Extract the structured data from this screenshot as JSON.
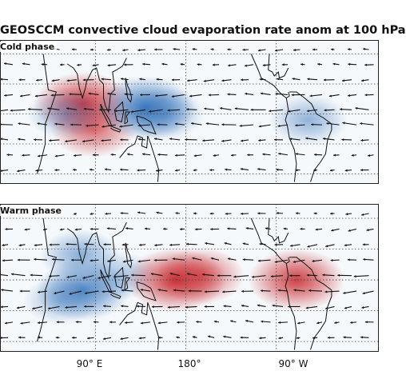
{
  "title": "GEOSCCM convective cloud evaporation rate anom at 100 hPa",
  "panels": [
    {
      "label": "Cold phase",
      "anomalies": [
        {
          "kind": "warm",
          "lon": 78,
          "lat": 5,
          "strength": 1.0
        },
        {
          "kind": "warm",
          "lon": 88,
          "lat": -8,
          "strength": 0.7
        },
        {
          "kind": "cool",
          "lon": 140,
          "lat": 3,
          "strength": 1.0
        },
        {
          "kind": "cool",
          "lon": 158,
          "lat": 0,
          "strength": 0.6
        },
        {
          "kind": "cool",
          "lon": 60,
          "lat": 0,
          "strength": 0.5
        },
        {
          "kind": "cool",
          "lon": 302,
          "lat": -3,
          "strength": 0.55
        }
      ]
    },
    {
      "label": "Warm phase",
      "anomalies": [
        {
          "kind": "cool",
          "lon": 75,
          "lat": 12,
          "strength": 0.6
        },
        {
          "kind": "cool",
          "lon": 78,
          "lat": -5,
          "strength": 0.9
        },
        {
          "kind": "cool",
          "lon": 115,
          "lat": 2,
          "strength": 0.45
        },
        {
          "kind": "warm",
          "lon": 170,
          "lat": 0,
          "strength": 1.0
        },
        {
          "kind": "warm",
          "lon": 195,
          "lat": 2,
          "strength": 0.75
        },
        {
          "kind": "warm",
          "lon": 290,
          "lat": 0,
          "strength": 0.95
        },
        {
          "kind": "cool",
          "lon": 55,
          "lat": -10,
          "strength": 0.45
        }
      ]
    }
  ],
  "x_ticks": [
    "90° E",
    "180°",
    "90° W"
  ],
  "colors": {
    "warm": "#c8262b",
    "cool": "#2f6fb8",
    "coast": "#111111",
    "arrow": "#111111",
    "grid": "#444444"
  }
}
